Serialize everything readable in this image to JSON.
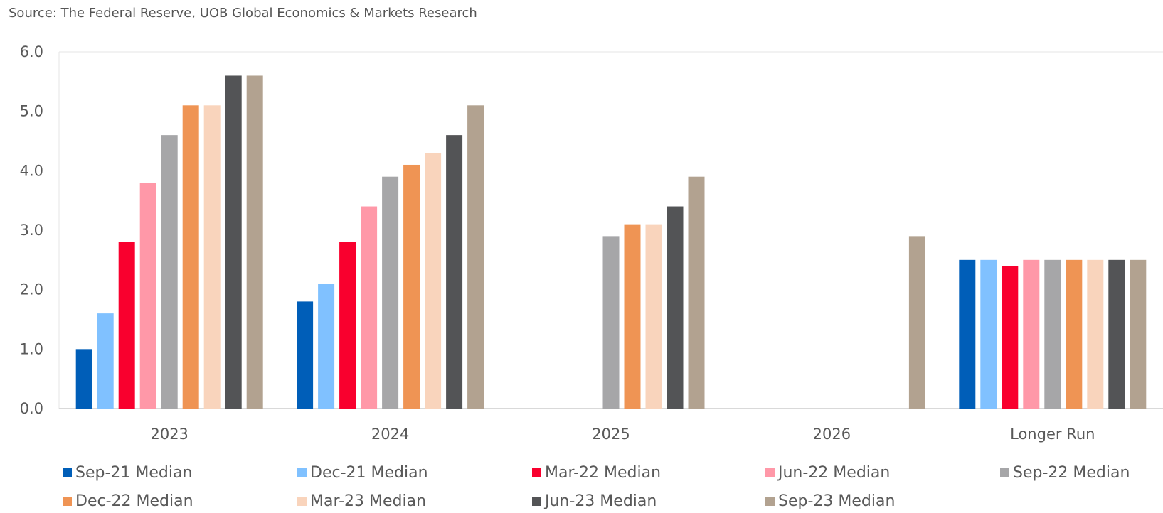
{
  "source": "Source: The Federal Reserve, UOB Global Economics & Markets Research",
  "chart_data": {
    "type": "bar",
    "title": "",
    "xlabel": "",
    "ylabel": "",
    "ylim": [
      0,
      6
    ],
    "yticks": [
      "0.0",
      "1.0",
      "2.0",
      "3.0",
      "4.0",
      "5.0",
      "6.0"
    ],
    "categories": [
      "2023",
      "2024",
      "2025",
      "2026",
      "Longer Run"
    ],
    "legend_position": "bottom",
    "series": [
      {
        "name": "Sep-21 Median",
        "color": "#005EB8",
        "values": [
          1.0,
          1.8,
          null,
          null,
          2.5
        ]
      },
      {
        "name": "Dec-21 Median",
        "color": "#80C1FF",
        "values": [
          1.6,
          2.1,
          null,
          null,
          2.5
        ]
      },
      {
        "name": "Mar-22 Median",
        "color": "#F9002E",
        "values": [
          2.8,
          2.8,
          null,
          null,
          2.4
        ]
      },
      {
        "name": "Jun-22 Median",
        "color": "#FF98A8",
        "values": [
          3.8,
          3.4,
          null,
          null,
          2.5
        ]
      },
      {
        "name": "Sep-22 Median",
        "color": "#A6A6A8",
        "values": [
          4.6,
          3.9,
          2.9,
          null,
          2.5
        ]
      },
      {
        "name": "Dec-22 Median",
        "color": "#EF9454",
        "values": [
          5.1,
          4.1,
          3.1,
          null,
          2.5
        ]
      },
      {
        "name": "Mar-23 Median",
        "color": "#F9D4BC",
        "values": [
          5.1,
          4.3,
          3.1,
          null,
          2.5
        ]
      },
      {
        "name": "Jun-23 Median",
        "color": "#535456",
        "values": [
          5.6,
          4.6,
          3.4,
          null,
          2.5
        ]
      },
      {
        "name": "Sep-23 Median",
        "color": "#B2A290",
        "values": [
          5.6,
          5.1,
          3.9,
          2.9,
          2.5
        ]
      }
    ]
  }
}
